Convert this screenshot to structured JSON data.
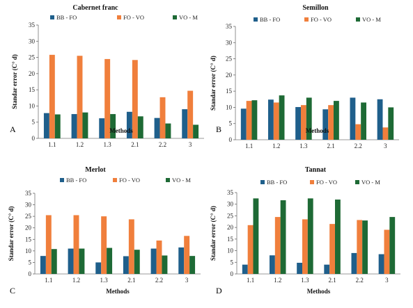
{
  "colors": {
    "BB - FO": "#1f5f8b",
    "FO - VO": "#f07f3c",
    "VO - M": "#1e6a35"
  },
  "chart_data": [
    {
      "type": "bar",
      "title": "Cabernet franc",
      "panel": "A",
      "categories": [
        "1.1",
        "1.2",
        "1.3",
        "2.1",
        "2.2",
        "3"
      ],
      "series": [
        {
          "name": "BB - FO",
          "values": [
            7.8,
            7.5,
            6.2,
            8.2,
            6.3,
            9.0
          ]
        },
        {
          "name": "FO - VO",
          "values": [
            25.8,
            25.5,
            24.5,
            24.2,
            12.7,
            14.7
          ]
        },
        {
          "name": "VO - M",
          "values": [
            7.4,
            8.0,
            7.5,
            6.8,
            4.6,
            4.2
          ]
        }
      ],
      "xlabel": "Methods",
      "ylabel": "Standar error (C° d)",
      "ylim": [
        0,
        35
      ],
      "yticks": [
        0,
        5,
        10,
        15,
        20,
        25,
        30,
        35
      ],
      "legend": "top"
    },
    {
      "type": "bar",
      "title": "Semillon",
      "panel": "B",
      "categories": [
        "1.1",
        "1.2",
        "1.3",
        "2.1",
        "2.2",
        "3"
      ],
      "series": [
        {
          "name": "BB - FO",
          "values": [
            9.6,
            12.4,
            10.1,
            9.4,
            13.0,
            12.5
          ]
        },
        {
          "name": "FO - VO",
          "values": [
            12.0,
            11.5,
            10.7,
            10.7,
            4.8,
            3.8
          ]
        },
        {
          "name": "VO - M",
          "values": [
            12.2,
            13.7,
            13.0,
            12.0,
            11.5,
            10.0
          ]
        }
      ],
      "xlabel": "Methods",
      "ylabel": "Standar error (C° d)",
      "ylim": [
        0,
        35
      ],
      "yticks": [
        0,
        5,
        10,
        15,
        20,
        25,
        30,
        35
      ],
      "legend": "top"
    },
    {
      "type": "bar",
      "title": "Merlot",
      "panel": "C",
      "categories": [
        "1.1",
        "1.2",
        "1.3",
        "2.1",
        "2.2",
        "3"
      ],
      "series": [
        {
          "name": "BB - FO",
          "values": [
            7.8,
            11.0,
            5.0,
            7.7,
            11.0,
            11.5
          ]
        },
        {
          "name": "FO - VO",
          "values": [
            25.5,
            25.5,
            25.0,
            23.7,
            14.5,
            16.5
          ]
        },
        {
          "name": "VO - M",
          "values": [
            10.8,
            11.0,
            11.3,
            10.5,
            8.0,
            7.8
          ]
        }
      ],
      "xlabel": "Methods",
      "ylabel": "Standar error (C° d)",
      "ylim": [
        0,
        35
      ],
      "yticks": [
        0,
        5,
        10,
        15,
        20,
        25,
        30,
        35
      ],
      "legend": "top"
    },
    {
      "type": "bar",
      "title": "Tannat",
      "panel": "D",
      "categories": [
        "1.1",
        "1.2",
        "1.3",
        "2.1",
        "2.2",
        "3"
      ],
      "series": [
        {
          "name": "BB - FO",
          "values": [
            4.0,
            8.0,
            4.8,
            4.0,
            9.0,
            8.5
          ]
        },
        {
          "name": "FO - VO",
          "values": [
            21.0,
            24.5,
            23.5,
            21.5,
            23.2,
            19.0
          ]
        },
        {
          "name": "VO - M",
          "values": [
            32.5,
            31.7,
            32.5,
            32.0,
            23.0,
            24.5
          ]
        }
      ],
      "xlabel": "Methods",
      "ylabel": "Standar error (C° d)",
      "ylim": [
        0,
        35
      ],
      "yticks": [
        0,
        5,
        10,
        15,
        20,
        25,
        30,
        35
      ],
      "legend": "top"
    }
  ]
}
